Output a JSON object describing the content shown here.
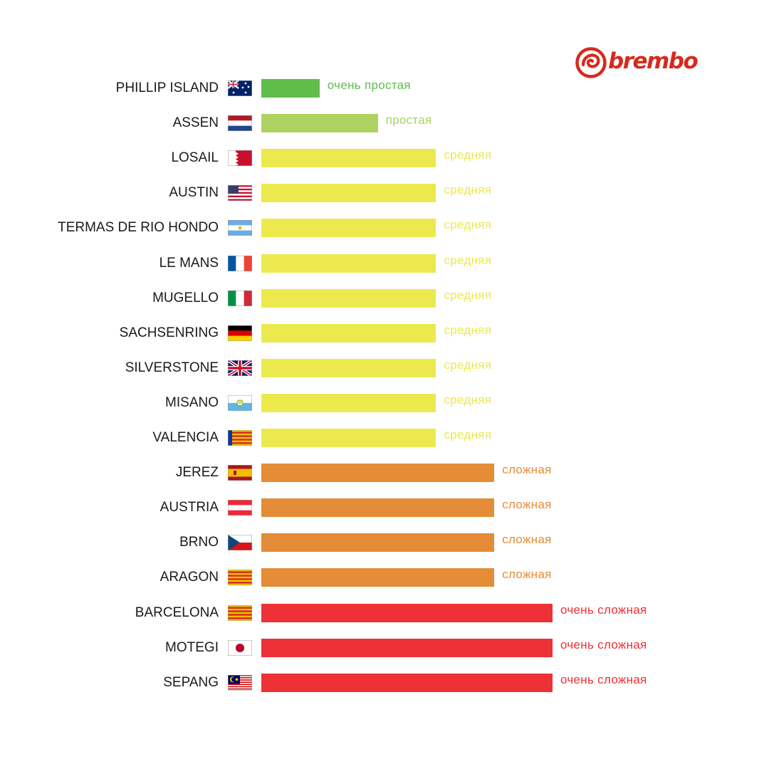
{
  "brand": {
    "name": "brembo",
    "color": "#d52b1e",
    "icon": "brembo-disc-logo-icon"
  },
  "chart_data": {
    "type": "bar",
    "orientation": "horizontal",
    "value_scale": "difficulty level 1-5",
    "categories": [
      "PHILLIP ISLAND",
      "ASSEN",
      "LOSAIL",
      "AUSTIN",
      "TERMAS DE RIO HONDO",
      "LE MANS",
      "MUGELLO",
      "SACHSENRING",
      "SILVERSTONE",
      "MISANO",
      "VALENCIA",
      "JEREZ",
      "AUSTRIA",
      "BRNO",
      "ARAGON",
      "BARCELONA",
      "MOTEGI",
      "SEPANG"
    ],
    "flags": [
      "australia-flag-icon",
      "netherlands-flag-icon",
      "qatar-flag-icon",
      "usa-flag-icon",
      "argentina-flag-icon",
      "france-flag-icon",
      "italy-flag-icon",
      "germany-flag-icon",
      "uk-flag-icon",
      "san-marino-flag-icon",
      "valencia-flag-icon",
      "spain-flag-icon",
      "austria-flag-icon",
      "czech-flag-icon",
      "aragon-flag-icon",
      "catalonia-flag-icon",
      "japan-flag-icon",
      "malaysia-flag-icon"
    ],
    "values": [
      1,
      2,
      3,
      3,
      3,
      3,
      3,
      3,
      3,
      3,
      3,
      4,
      4,
      4,
      4,
      5,
      5,
      5
    ],
    "level_labels": {
      "1": "очень простая",
      "2": "простая",
      "3": "средняя",
      "4": "сложная",
      "5": "очень сложная"
    },
    "level_colors": {
      "1": "#5fbe4a",
      "2": "#acd35f",
      "3": "#ece94f",
      "4": "#e48c36",
      "5": "#ee3136"
    },
    "xlim": [
      0,
      5
    ],
    "grid": false,
    "legend": "none"
  }
}
